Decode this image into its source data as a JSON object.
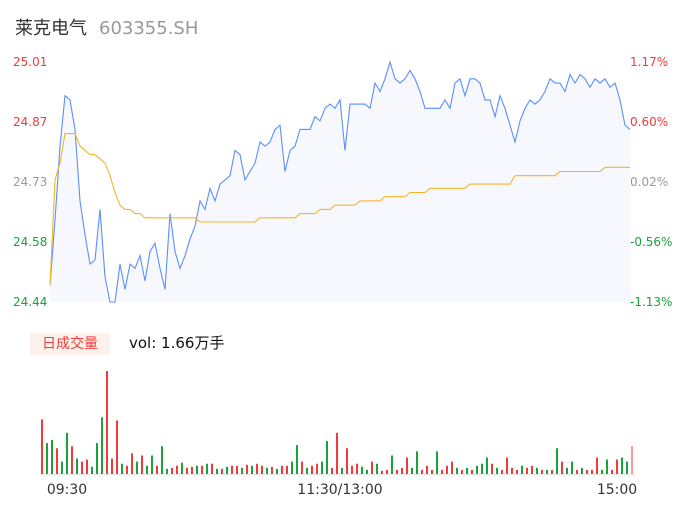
{
  "header": {
    "name": "莱克电气",
    "code": "603355.SH"
  },
  "volume_panel": {
    "badge": "日成交量",
    "vol_text": "vol: 1.66万手"
  },
  "colors": {
    "price_line": "#5b8ff9",
    "avg_line": "#f5b526",
    "up": "#f23a3a",
    "down": "#1aa33a",
    "neutral": "#999999",
    "area_fill": "#f6f8fe"
  },
  "chart_data": [
    {
      "type": "line",
      "title": "",
      "ylim": [
        24.44,
        25.01
      ],
      "y_ticks_left": [
        {
          "label": "25.01",
          "value": 25.01,
          "tone": "up"
        },
        {
          "label": "24.87",
          "value": 24.87,
          "tone": "up"
        },
        {
          "label": "24.73",
          "value": 24.73,
          "tone": "neutral"
        },
        {
          "label": "24.58",
          "value": 24.58,
          "tone": "down"
        },
        {
          "label": "24.44",
          "value": 24.44,
          "tone": "down"
        }
      ],
      "y_ticks_right": [
        {
          "label": "1.17%",
          "tone": "up"
        },
        {
          "label": "0.60%",
          "tone": "up"
        },
        {
          "label": "0.02%",
          "tone": "neutral"
        },
        {
          "label": "-0.56%",
          "tone": "down"
        },
        {
          "label": "-1.13%",
          "tone": "down"
        }
      ],
      "x_ticks": [
        "09:30",
        "11:30/13:00",
        "15:00"
      ],
      "series": [
        {
          "key": "price",
          "values": [
            24.48,
            24.635,
            24.81,
            24.93,
            24.92,
            24.85,
            24.68,
            24.6,
            24.53,
            24.54,
            24.66,
            24.5,
            24.44,
            24.44,
            24.53,
            24.47,
            24.53,
            24.52,
            24.55,
            24.49,
            24.56,
            24.58,
            24.52,
            24.47,
            24.65,
            24.56,
            24.52,
            24.55,
            24.59,
            24.62,
            24.68,
            24.66,
            24.71,
            24.68,
            24.72,
            24.73,
            24.74,
            24.8,
            24.79,
            24.73,
            24.75,
            24.77,
            24.82,
            24.81,
            24.82,
            24.85,
            24.86,
            24.75,
            24.8,
            24.81,
            24.85,
            24.85,
            24.85,
            24.88,
            24.87,
            24.9,
            24.91,
            24.9,
            24.92,
            24.8,
            24.91,
            24.91,
            24.91,
            24.91,
            24.9,
            24.96,
            24.94,
            24.97,
            25.01,
            24.97,
            24.96,
            24.97,
            24.99,
            24.97,
            24.94,
            24.9,
            24.9,
            24.9,
            24.9,
            24.92,
            24.9,
            24.96,
            24.97,
            24.93,
            24.97,
            24.97,
            24.96,
            24.92,
            24.92,
            24.88,
            24.93,
            24.9,
            24.86,
            24.82,
            24.87,
            24.9,
            24.92,
            24.91,
            24.92,
            24.94,
            24.97,
            24.96,
            24.96,
            24.94,
            24.98,
            24.96,
            24.98,
            24.97,
            24.95,
            24.97,
            24.96,
            24.97,
            24.95,
            24.96,
            24.92,
            24.86,
            24.85
          ]
        },
        {
          "key": "average",
          "values": [
            24.48,
            24.73,
            24.77,
            24.84,
            24.84,
            24.84,
            24.81,
            24.8,
            24.79,
            24.79,
            24.78,
            24.77,
            24.74,
            24.7,
            24.67,
            24.66,
            24.66,
            24.65,
            24.65,
            24.64,
            24.64,
            24.64,
            24.64,
            24.64,
            24.64,
            24.64,
            24.64,
            24.64,
            24.64,
            24.64,
            24.63,
            24.63,
            24.63,
            24.63,
            24.63,
            24.63,
            24.63,
            24.63,
            24.63,
            24.63,
            24.63,
            24.63,
            24.64,
            24.64,
            24.64,
            24.64,
            24.64,
            24.64,
            24.64,
            24.64,
            24.65,
            24.65,
            24.65,
            24.65,
            24.66,
            24.66,
            24.66,
            24.67,
            24.67,
            24.67,
            24.67,
            24.67,
            24.68,
            24.68,
            24.68,
            24.68,
            24.68,
            24.69,
            24.69,
            24.69,
            24.69,
            24.69,
            24.7,
            24.7,
            24.7,
            24.7,
            24.71,
            24.71,
            24.71,
            24.71,
            24.71,
            24.71,
            24.71,
            24.71,
            24.72,
            24.72,
            24.72,
            24.72,
            24.72,
            24.72,
            24.72,
            24.72,
            24.72,
            24.74,
            24.74,
            24.74,
            24.74,
            24.74,
            24.74,
            24.74,
            24.74,
            24.74,
            24.75,
            24.75,
            24.75,
            24.75,
            24.75,
            24.75,
            24.75,
            24.75,
            24.75,
            24.76,
            24.76,
            24.76,
            24.76,
            24.76,
            24.76
          ]
        }
      ]
    },
    {
      "type": "bar",
      "title": "",
      "values": [
        53,
        30,
        33,
        25,
        12,
        40,
        27,
        15,
        12,
        14,
        7,
        30,
        55,
        100,
        15,
        52,
        10,
        8,
        20,
        12,
        18,
        8,
        18,
        8,
        27,
        5,
        6,
        8,
        11,
        6,
        7,
        8,
        8,
        10,
        10,
        5,
        5,
        7,
        8,
        8,
        6,
        9,
        8,
        10,
        8,
        6,
        7,
        5,
        8,
        8,
        12,
        28,
        12,
        6,
        8,
        10,
        12,
        32,
        6,
        40,
        6,
        25,
        8,
        10,
        7,
        4,
        12,
        10,
        3,
        4,
        18,
        4,
        6,
        16,
        6,
        22,
        4,
        8,
        4,
        22,
        4,
        8,
        12,
        6,
        4,
        6,
        4,
        8,
        10,
        16,
        10,
        6,
        4,
        16,
        6,
        4,
        8,
        6,
        8,
        6,
        4,
        4,
        4,
        25,
        12,
        6,
        12,
        4,
        6,
        4,
        4,
        16,
        4,
        14,
        4,
        14,
        16,
        12,
        27
      ],
      "directions": [
        "r",
        "g",
        "g",
        "r",
        "g",
        "g",
        "r",
        "g",
        "r",
        "r",
        "g",
        "g",
        "g",
        "r",
        "r",
        "r",
        "g",
        "r",
        "r",
        "g",
        "r",
        "g",
        "g",
        "r",
        "g",
        "g",
        "r",
        "r",
        "g",
        "r",
        "r",
        "g",
        "r",
        "g",
        "r",
        "g",
        "r",
        "g",
        "r",
        "r",
        "g",
        "r",
        "g",
        "r",
        "r",
        "g",
        "r",
        "g",
        "r",
        "r",
        "g",
        "g",
        "r",
        "g",
        "r",
        "r",
        "g",
        "g",
        "r",
        "r",
        "g",
        "r",
        "r",
        "r",
        "g",
        "g",
        "r",
        "g",
        "r",
        "r",
        "g",
        "r",
        "r",
        "r",
        "g",
        "g",
        "r",
        "r",
        "r",
        "g",
        "r",
        "r",
        "r",
        "g",
        "r",
        "g",
        "r",
        "g",
        "g",
        "g",
        "r",
        "g",
        "r",
        "r",
        "r",
        "r",
        "g",
        "r",
        "r",
        "g",
        "r",
        "g",
        "r",
        "g",
        "r",
        "g",
        "g",
        "r",
        "g",
        "r",
        "r",
        "r",
        "g",
        "g",
        "r",
        "r",
        "g",
        "g",
        "r"
      ]
    }
  ]
}
